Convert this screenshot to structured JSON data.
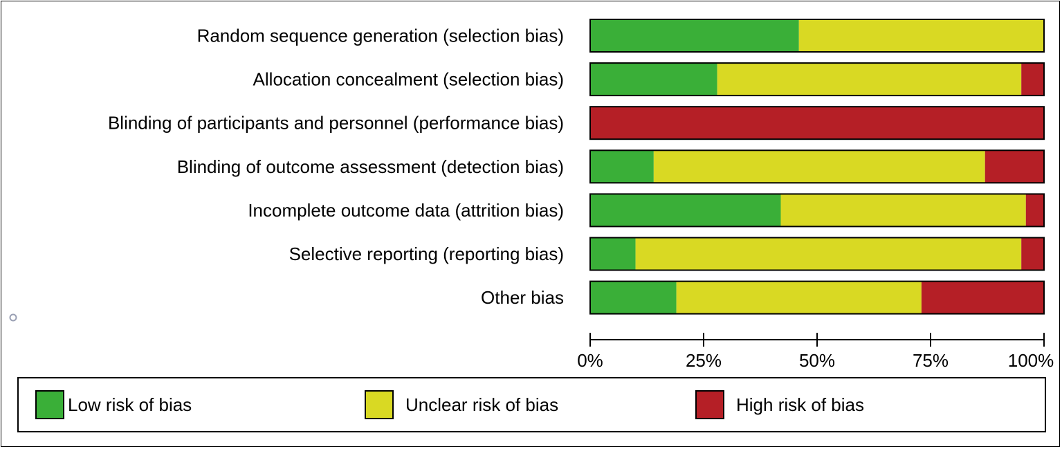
{
  "chart_data": {
    "type": "bar",
    "orientation": "horizontal",
    "stacked": true,
    "percent": true,
    "categories": [
      "Random sequence generation (selection bias)",
      "Allocation concealment (selection bias)",
      "Blinding of participants and personnel (performance bias)",
      "Blinding of outcome assessment (detection bias)",
      "Incomplete outcome data (attrition bias)",
      "Selective reporting (reporting bias)",
      "Other bias"
    ],
    "series": [
      {
        "name": "Low risk of bias",
        "color": "#3aaf38",
        "values": [
          46,
          28,
          0,
          14,
          42,
          10,
          19
        ]
      },
      {
        "name": "Unclear risk of bias",
        "color": "#d9d923",
        "values": [
          54,
          67,
          0,
          73,
          54,
          85,
          54
        ]
      },
      {
        "name": "High risk of bias",
        "color": "#b51f26",
        "values": [
          0,
          5,
          100,
          13,
          4,
          5,
          27
        ]
      }
    ],
    "x_ticks": [
      "0%",
      "25%",
      "50%",
      "75%",
      "100%"
    ],
    "xlim": [
      0,
      100
    ],
    "legend_position": "bottom",
    "grid": false
  }
}
